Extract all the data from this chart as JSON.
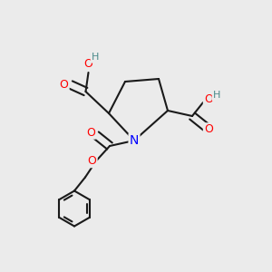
{
  "bg_color": "#ebebeb",
  "bond_color": "#1a1a1a",
  "bond_width": 1.5,
  "atom_colors": {
    "O": "#ff0000",
    "N": "#0000ff",
    "C": "#1a1a1a",
    "H": "#4a8a8a"
  },
  "font_size_atom": 9,
  "font_size_H": 8
}
